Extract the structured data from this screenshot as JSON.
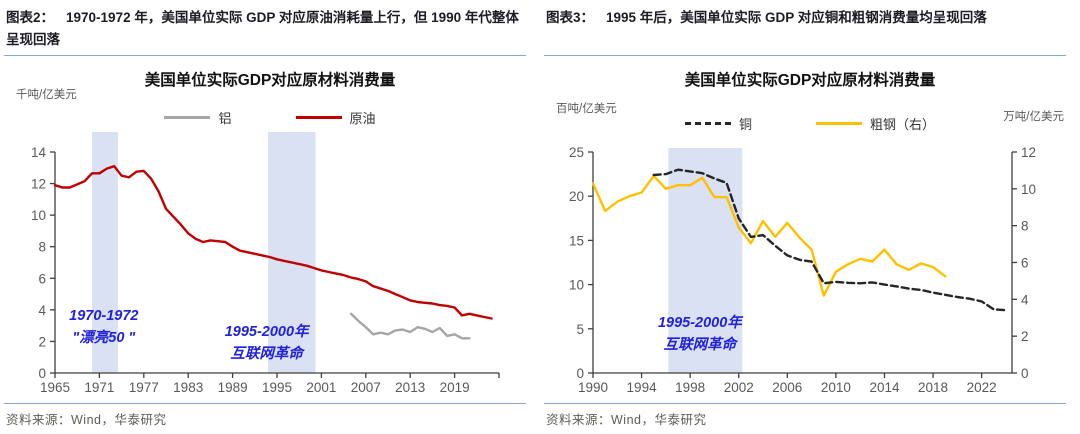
{
  "panels": [
    {
      "tag": "图表2：",
      "heading": "1970-1972 年，美国单位实际 GDP 对应原油消耗量上行，但 1990 年代整体呈现回落",
      "source": "资料来源：Wind，华泰研究"
    },
    {
      "tag": "图表3：",
      "heading": "1995 年后，美国单位实际 GDP 对应铜和粗钢消费量均呈现回落",
      "source": "资料来源：Wind，华泰研究"
    }
  ],
  "chart_data": [
    {
      "type": "line",
      "title": "美国单位实际GDP对应原材料消费量",
      "x_axis": {
        "min": 1965,
        "max": 2025,
        "ticks": [
          1965,
          1971,
          1977,
          1983,
          1989,
          1995,
          2001,
          2007,
          2013,
          2019
        ]
      },
      "left_axis": {
        "unit": "千吨/亿美元",
        "ticks": [
          0,
          2,
          4,
          6,
          8,
          10,
          12,
          14
        ]
      },
      "bands": [
        {
          "x0": 1970,
          "x1": 1973.5
        },
        {
          "x0": 1993.8,
          "x1": 2000.2
        }
      ],
      "annotations": [
        {
          "x": 1971.6,
          "y": 3.35,
          "lines": [
            "1970-1972",
            "\"漂亮50 \""
          ]
        },
        {
          "x": 1993.6,
          "y": 2.35,
          "lines": [
            "1995-2000年",
            "互联网革命"
          ]
        }
      ],
      "series": [
        {
          "name": "铝",
          "color": "#a6a6a6",
          "axis": "left",
          "dashed": false,
          "x_start": 2005,
          "values": [
            3.75,
            3.3,
            2.9,
            2.45,
            2.55,
            2.45,
            2.7,
            2.75,
            2.6,
            2.9,
            2.8,
            2.6,
            2.85,
            2.35,
            2.45,
            2.2,
            2.2
          ]
        },
        {
          "name": "原油",
          "color": "#c00000",
          "axis": "left",
          "dashed": false,
          "x_start": 1965,
          "values": [
            11.9,
            11.75,
            11.75,
            11.95,
            12.15,
            12.65,
            12.65,
            12.95,
            13.1,
            12.5,
            12.4,
            12.75,
            12.8,
            12.3,
            11.5,
            10.4,
            9.9,
            9.4,
            8.85,
            8.5,
            8.3,
            8.4,
            8.35,
            8.3,
            8.0,
            7.75,
            7.65,
            7.55,
            7.45,
            7.35,
            7.2,
            7.1,
            7.0,
            6.9,
            6.8,
            6.65,
            6.5,
            6.4,
            6.3,
            6.2,
            6.05,
            5.95,
            5.8,
            5.5,
            5.35,
            5.2,
            5.0,
            4.8,
            4.6,
            4.5,
            4.45,
            4.4,
            4.3,
            4.25,
            4.15,
            3.65,
            3.75,
            3.65,
            3.55,
            3.45
          ]
        }
      ]
    },
    {
      "type": "line",
      "title": "美国单位实际GDP对应原材料消费量",
      "x_axis": {
        "min": 1990,
        "max": 2024.5,
        "ticks": [
          1990,
          1994,
          1998,
          2002,
          2006,
          2010,
          2014,
          2018,
          2022
        ]
      },
      "left_axis": {
        "unit": "百吨/亿美元",
        "ticks": [
          0,
          5,
          10,
          15,
          20,
          25
        ]
      },
      "right_axis": {
        "unit": "万吨/亿美元",
        "ticks": [
          0,
          2,
          4,
          6,
          8,
          10,
          12
        ]
      },
      "bands": [
        {
          "x0": 1996.2,
          "x1": 2002.3
        }
      ],
      "annotations": [
        {
          "x": 1998.8,
          "y": 5.2,
          "lines": [
            "1995-2000年",
            "互联网革命"
          ]
        }
      ],
      "series": [
        {
          "name": "粗钢（右）",
          "color": "#ffc000",
          "axis": "right",
          "dashed": false,
          "x_start": 1990,
          "values": [
            10.3,
            8.8,
            9.3,
            9.6,
            9.8,
            10.7,
            10.0,
            10.2,
            10.2,
            10.6,
            9.55,
            9.55,
            7.9,
            7.05,
            8.25,
            7.4,
            8.15,
            7.35,
            6.7,
            4.2,
            5.5,
            5.9,
            6.2,
            6.05,
            6.7,
            5.9,
            5.6,
            5.95,
            5.75,
            5.25
          ]
        },
        {
          "name": "铜",
          "color": "#262626",
          "axis": "left",
          "dashed": true,
          "x_start": 1995,
          "values": [
            22.4,
            22.5,
            23.0,
            22.8,
            22.6,
            22.0,
            21.5,
            17.5,
            15.4,
            15.6,
            14.4,
            13.3,
            12.8,
            12.6,
            10.15,
            10.3,
            10.2,
            10.15,
            10.25,
            10.0,
            9.8,
            9.55,
            9.4,
            9.1,
            8.85,
            8.6,
            8.4,
            8.1,
            7.2,
            7.1
          ]
        }
      ]
    }
  ],
  "colors": {
    "band": "#d9e1f2",
    "annotation": "#2121dd",
    "divider": "#8aa8ce",
    "axis": "#3f3f3f",
    "tick_label": "#595959"
  }
}
